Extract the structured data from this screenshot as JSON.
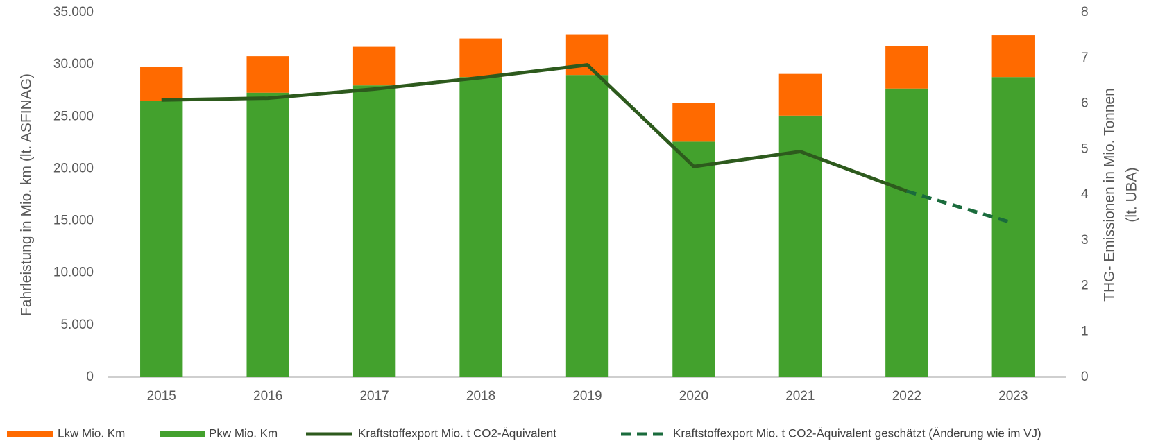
{
  "chart_data": {
    "type": "bar",
    "stacked": true,
    "categories": [
      "2015",
      "2016",
      "2017",
      "2018",
      "2019",
      "2020",
      "2021",
      "2022",
      "2023"
    ],
    "ylabel": "Fahrleistung in Mio. km (lt. ASFINAG)",
    "y2label": [
      "THG- Emissionen in Mio. Tonnen",
      "(lt. UBA)"
    ],
    "ylim": [
      0,
      35000
    ],
    "yticks": [
      0,
      {
        "value": 5000,
        "label": "5.000"
      },
      {
        "value": 10000,
        "label": "10.000"
      },
      {
        "value": 15000,
        "label": "15.000"
      },
      {
        "value": 20000,
        "label": "20.000"
      },
      {
        "value": 25000,
        "label": "25.000"
      },
      {
        "value": 30000,
        "label": "30.000"
      },
      {
        "value": 35000,
        "label": "35.000"
      }
    ],
    "y2lim": [
      0,
      8
    ],
    "y2ticks": [
      0,
      1,
      2,
      3,
      4,
      5,
      6,
      7,
      8
    ],
    "grid": false,
    "legend": "bottom",
    "series": [
      {
        "name": "Pkw Mio. Km",
        "type": "bar",
        "color": "#43a12d",
        "values": [
          26500,
          27300,
          28000,
          28800,
          29000,
          22600,
          25100,
          27700,
          28800
        ]
      },
      {
        "name": "Lkw Mio. Km",
        "type": "bar",
        "color": "#ff6a00",
        "values": [
          3300,
          3500,
          3700,
          3700,
          3900,
          3700,
          4000,
          4100,
          4000
        ]
      },
      {
        "name": "Kraftstoffexport Mio. t CO2-Äquivalent",
        "type": "line",
        "axis": "y2",
        "color": "#2d5a1d",
        "dashed": false,
        "values": [
          6.08,
          6.12,
          6.32,
          6.57,
          6.85,
          4.62,
          4.95,
          4.08,
          null
        ]
      },
      {
        "name": "Kraftstoffexport Mio. t CO2-Äquivalent geschätzt (Änderung wie im VJ)",
        "type": "line",
        "axis": "y2",
        "color": "#1a6b3c",
        "dashed": true,
        "values": [
          null,
          null,
          null,
          null,
          null,
          null,
          null,
          4.08,
          3.38
        ]
      }
    ],
    "legend_order": [
      1,
      0,
      2,
      3
    ]
  }
}
